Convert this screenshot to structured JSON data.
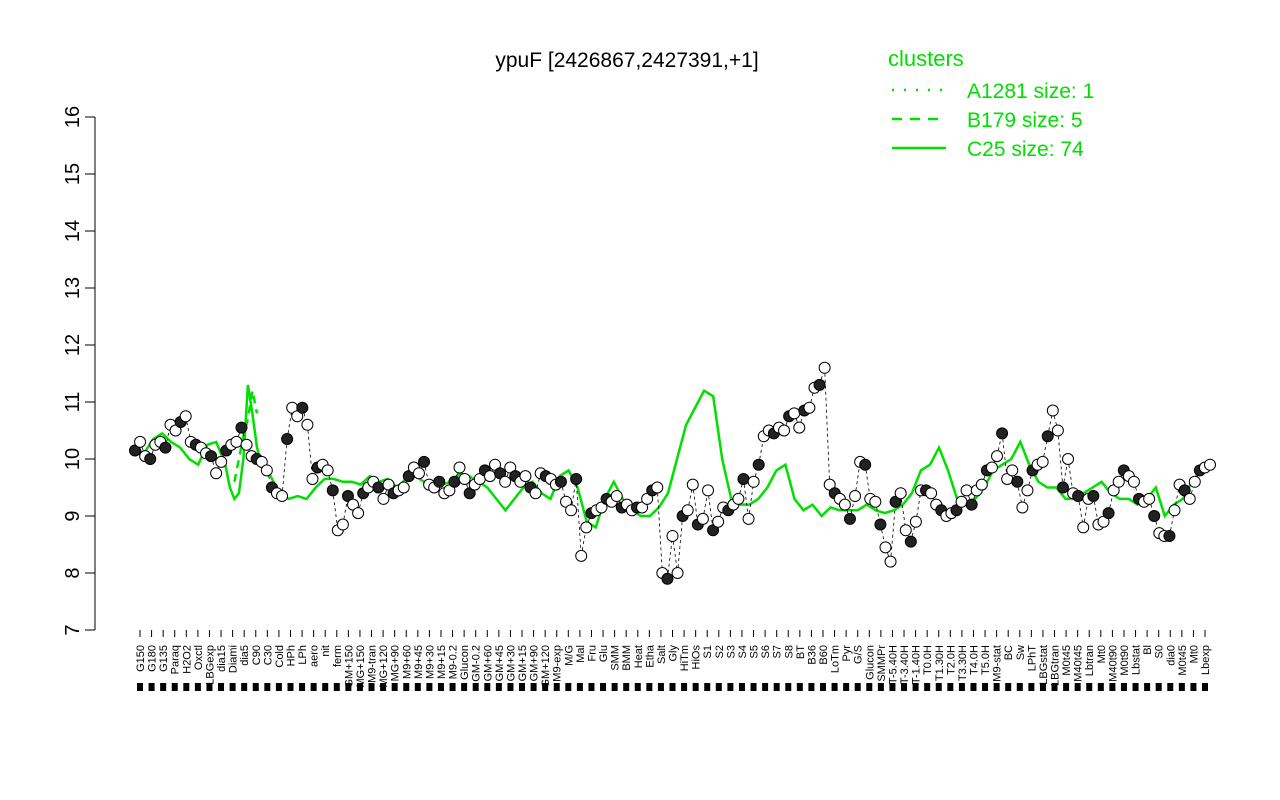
{
  "chart_data": {
    "type": "line",
    "title": "ypuF [2426867,2427391,+1]",
    "xlabel": "",
    "ylabel": "",
    "ylim": [
      7,
      16
    ],
    "yticks": [
      7,
      8,
      9,
      10,
      11,
      12,
      13,
      14,
      15,
      16
    ],
    "legend": {
      "title": "clusters",
      "placement": "top-right",
      "color": "#00e000",
      "entries": [
        {
          "label": "A1281 size: 1",
          "style": "dotted"
        },
        {
          "label": "B179 size: 5",
          "style": "dashed"
        },
        {
          "label": "C25 size: 74",
          "style": "solid"
        }
      ]
    },
    "xtick_labels": [
      "G150",
      "G180",
      "G135",
      "Paraq",
      "H2O2",
      "Oxctl",
      "LBGexp",
      "dia15",
      "Diami",
      "dia5",
      "C90",
      "C30",
      "Cold",
      "HPh",
      "LPh",
      "aero",
      "nit",
      "ferm",
      "GM+150",
      "MG+150",
      "M9-tran",
      "MG+120",
      "MG+90",
      "M9+60",
      "M9+45",
      "M9+30",
      "M9+15",
      "M9-0.2",
      "Glucon",
      "GM-0.2",
      "GM+60",
      "GM+45",
      "GM+30",
      "GM+15",
      "GM+90",
      "GM+120",
      "M9-exp",
      "M/G",
      "Mal",
      "Fru",
      "Glu",
      "SMM",
      "BMM",
      "Heat",
      "Etha",
      "Salt",
      "Gly",
      "HiTm",
      "HiOs",
      "S1",
      "S2",
      "S3",
      "S4",
      "S5",
      "S6",
      "S7",
      "S8",
      "BT",
      "B36",
      "B60",
      "LoTm",
      "Pyr",
      "G/S",
      "Glucon",
      "SMMPr",
      "T-5.40H",
      "T-3.40H",
      "T-1.40H",
      "T0.0H",
      "T1.30H",
      "T2.0H",
      "T3.30H",
      "T4.0H",
      "T5.0H",
      "M9-stat",
      "BC",
      "Sw",
      "LPhT",
      "LBGstat",
      "LBGtran",
      "M0t45",
      "M40t45",
      "Lbtran",
      "Mt0",
      "M40t90",
      "M0t90",
      "Lbstat",
      "Bl",
      "S0",
      "dia0",
      "M0t45",
      "Mt0",
      "Lbexp"
    ],
    "series": [
      {
        "label": "C25 size: 74",
        "style": "solid",
        "color": "#00e000",
        "x": [
          0,
          2,
          4,
          6,
          8,
          10,
          12,
          14,
          16,
          18,
          20,
          21,
          22,
          23,
          24,
          25,
          26,
          27,
          28,
          30,
          32,
          34,
          36,
          38,
          40,
          42,
          44,
          46,
          48,
          50,
          52,
          54,
          56,
          58,
          60,
          62,
          64,
          66,
          68,
          70,
          72,
          74,
          76,
          78,
          80,
          82,
          84,
          86,
          88,
          90,
          92,
          94,
          96,
          98,
          100,
          102,
          104,
          106,
          108,
          110,
          112,
          114,
          116,
          118,
          120,
          122,
          124,
          126,
          128,
          130,
          132,
          134,
          136,
          138,
          140,
          142,
          144,
          146,
          148,
          150,
          152,
          154,
          156,
          158,
          160,
          162,
          164,
          166,
          168,
          170,
          172,
          174,
          176,
          178,
          180,
          182,
          184,
          186,
          188,
          190,
          192,
          194,
          196,
          198,
          200,
          202,
          204,
          206,
          208,
          210,
          212,
          214,
          216,
          218,
          220,
          222,
          224,
          226,
          228,
          230,
          232,
          234,
          236,
          238
        ],
        "y": [
          10.2,
          10.1,
          10.35,
          10.45,
          10.3,
          10.2,
          10.0,
          9.9,
          10.25,
          10.3,
          9.9,
          9.5,
          9.3,
          9.4,
          10.0,
          11.3,
          10.8,
          10.2,
          9.9,
          9.7,
          9.4,
          9.3,
          9.35,
          9.3,
          9.5,
          9.65,
          9.65,
          9.6,
          9.6,
          9.55,
          9.7,
          9.6,
          9.65,
          9.5,
          9.65,
          9.7,
          9.6,
          9.6,
          9.55,
          9.6,
          9.75,
          9.7,
          9.6,
          9.5,
          9.3,
          9.1,
          9.3,
          9.5,
          9.6,
          9.4,
          9.3,
          9.7,
          9.8,
          9.5,
          8.9,
          8.8,
          9.3,
          9.6,
          9.3,
          9.1,
          9.0,
          9.0,
          9.15,
          9.4,
          10.0,
          10.6,
          10.9,
          11.2,
          11.1,
          10.0,
          9.3,
          9.2,
          9.2,
          9.3,
          9.5,
          9.8,
          9.9,
          9.3,
          9.1,
          9.2,
          9.0,
          9.15,
          9.1,
          9.1,
          9.1,
          9.2,
          9.1,
          9.05,
          9.1,
          9.2,
          9.4,
          9.8,
          9.9,
          10.2,
          9.8,
          9.3,
          9.2,
          9.3,
          9.5,
          9.8,
          9.9,
          10.0,
          10.3,
          9.9,
          9.6,
          9.5,
          9.5,
          9.3,
          9.3,
          9.4,
          9.5,
          9.6,
          9.4,
          9.3,
          9.3,
          9.2,
          9.3,
          9.5,
          9.0,
          9.2,
          9.3,
          9.6,
          9.8,
          9.9
        ]
      },
      {
        "label": "B179 size: 5",
        "style": "dashed",
        "color": "#00e000",
        "x": [
          22,
          24,
          25,
          26,
          27
        ],
        "y": [
          9.6,
          10.4,
          10.7,
          11.2,
          10.8
        ]
      }
    ],
    "points": [
      [
        0,
        10.15
      ],
      [
        1,
        10.3
      ],
      [
        2,
        10.05
      ],
      [
        3,
        10.0
      ],
      [
        4,
        10.25
      ],
      [
        5,
        10.3
      ],
      [
        6,
        10.2
      ],
      [
        7,
        10.6
      ],
      [
        8,
        10.5
      ],
      [
        9,
        10.65
      ],
      [
        10,
        10.75
      ],
      [
        11,
        10.3
      ],
      [
        12,
        10.25
      ],
      [
        13,
        10.2
      ],
      [
        14,
        10.1
      ],
      [
        15,
        10.05
      ],
      [
        16,
        9.75
      ],
      [
        17,
        9.95
      ],
      [
        18,
        10.15
      ],
      [
        19,
        10.25
      ],
      [
        20,
        10.3
      ],
      [
        21,
        10.55
      ],
      [
        22,
        10.25
      ],
      [
        23,
        10.05
      ],
      [
        24,
        10.0
      ],
      [
        25,
        9.95
      ],
      [
        26,
        9.8
      ],
      [
        27,
        9.5
      ],
      [
        28,
        9.4
      ],
      [
        29,
        9.35
      ],
      [
        30,
        10.35
      ],
      [
        31,
        10.9
      ],
      [
        32,
        10.75
      ],
      [
        33,
        10.9
      ],
      [
        34,
        10.6
      ],
      [
        35,
        9.65
      ],
      [
        36,
        9.85
      ],
      [
        37,
        9.9
      ],
      [
        38,
        9.8
      ],
      [
        39,
        9.45
      ],
      [
        40,
        8.75
      ],
      [
        41,
        8.85
      ],
      [
        42,
        9.35
      ],
      [
        43,
        9.2
      ],
      [
        44,
        9.05
      ],
      [
        45,
        9.4
      ],
      [
        46,
        9.5
      ],
      [
        47,
        9.6
      ],
      [
        48,
        9.5
      ],
      [
        49,
        9.3
      ],
      [
        50,
        9.55
      ],
      [
        51,
        9.4
      ],
      [
        52,
        9.45
      ],
      [
        53,
        9.5
      ],
      [
        54,
        9.7
      ],
      [
        55,
        9.85
      ],
      [
        56,
        9.75
      ],
      [
        57,
        9.95
      ],
      [
        58,
        9.55
      ],
      [
        59,
        9.5
      ],
      [
        60,
        9.6
      ],
      [
        61,
        9.4
      ],
      [
        62,
        9.45
      ],
      [
        63,
        9.6
      ],
      [
        64,
        9.85
      ],
      [
        65,
        9.65
      ],
      [
        66,
        9.4
      ],
      [
        67,
        9.55
      ],
      [
        68,
        9.65
      ],
      [
        69,
        9.8
      ],
      [
        70,
        9.7
      ],
      [
        71,
        9.9
      ],
      [
        72,
        9.75
      ],
      [
        73,
        9.6
      ],
      [
        74,
        9.85
      ],
      [
        75,
        9.7
      ],
      [
        76,
        9.6
      ],
      [
        77,
        9.7
      ],
      [
        78,
        9.5
      ],
      [
        79,
        9.4
      ],
      [
        80,
        9.75
      ],
      [
        81,
        9.7
      ],
      [
        82,
        9.65
      ],
      [
        83,
        9.55
      ],
      [
        84,
        9.6
      ],
      [
        85,
        9.25
      ],
      [
        86,
        9.1
      ],
      [
        87,
        9.65
      ],
      [
        88,
        8.3
      ],
      [
        89,
        8.8
      ],
      [
        90,
        9.05
      ],
      [
        91,
        9.1
      ],
      [
        92,
        9.15
      ],
      [
        93,
        9.3
      ],
      [
        94,
        9.25
      ],
      [
        95,
        9.35
      ],
      [
        96,
        9.15
      ],
      [
        97,
        9.2
      ],
      [
        98,
        9.1
      ],
      [
        99,
        9.15
      ],
      [
        100,
        9.15
      ],
      [
        101,
        9.3
      ],
      [
        102,
        9.45
      ],
      [
        103,
        9.5
      ],
      [
        104,
        8.0
      ],
      [
        105,
        7.9
      ],
      [
        106,
        8.65
      ],
      [
        107,
        8.0
      ],
      [
        108,
        9.0
      ],
      [
        109,
        9.1
      ],
      [
        110,
        9.55
      ],
      [
        111,
        8.85
      ],
      [
        112,
        8.95
      ],
      [
        113,
        9.45
      ],
      [
        114,
        8.75
      ],
      [
        115,
        8.9
      ],
      [
        116,
        9.15
      ],
      [
        117,
        9.1
      ],
      [
        118,
        9.2
      ],
      [
        119,
        9.3
      ],
      [
        120,
        9.65
      ],
      [
        121,
        8.95
      ],
      [
        122,
        9.6
      ],
      [
        123,
        9.9
      ],
      [
        124,
        10.4
      ],
      [
        125,
        10.5
      ],
      [
        126,
        10.45
      ],
      [
        127,
        10.55
      ],
      [
        128,
        10.5
      ],
      [
        129,
        10.75
      ],
      [
        130,
        10.8
      ],
      [
        131,
        10.55
      ],
      [
        132,
        10.85
      ],
      [
        133,
        10.9
      ],
      [
        134,
        11.25
      ],
      [
        135,
        11.3
      ],
      [
        136,
        11.6
      ],
      [
        137,
        9.55
      ],
      [
        138,
        9.4
      ],
      [
        139,
        9.3
      ],
      [
        140,
        9.2
      ],
      [
        141,
        8.95
      ],
      [
        142,
        9.35
      ],
      [
        143,
        9.95
      ],
      [
        144,
        9.9
      ],
      [
        145,
        9.3
      ],
      [
        146,
        9.25
      ],
      [
        147,
        8.85
      ],
      [
        148,
        8.45
      ],
      [
        149,
        8.2
      ],
      [
        150,
        9.25
      ],
      [
        151,
        9.4
      ],
      [
        152,
        8.75
      ],
      [
        153,
        8.55
      ],
      [
        154,
        8.9
      ],
      [
        155,
        9.45
      ],
      [
        156,
        9.45
      ],
      [
        157,
        9.4
      ],
      [
        158,
        9.2
      ],
      [
        159,
        9.1
      ],
      [
        160,
        9.0
      ],
      [
        161,
        9.05
      ],
      [
        162,
        9.1
      ],
      [
        163,
        9.25
      ],
      [
        164,
        9.45
      ],
      [
        165,
        9.2
      ],
      [
        166,
        9.45
      ],
      [
        167,
        9.55
      ],
      [
        168,
        9.8
      ],
      [
        169,
        9.85
      ],
      [
        170,
        10.05
      ],
      [
        171,
        10.45
      ],
      [
        172,
        9.65
      ],
      [
        173,
        9.8
      ],
      [
        174,
        9.6
      ],
      [
        175,
        9.15
      ],
      [
        176,
        9.45
      ],
      [
        177,
        9.8
      ],
      [
        178,
        9.9
      ],
      [
        179,
        9.95
      ],
      [
        180,
        10.4
      ],
      [
        181,
        10.85
      ],
      [
        182,
        10.5
      ],
      [
        183,
        9.5
      ],
      [
        184,
        10.0
      ],
      [
        185,
        9.4
      ],
      [
        186,
        9.35
      ],
      [
        187,
        8.8
      ],
      [
        188,
        9.3
      ],
      [
        189,
        9.35
      ],
      [
        190,
        8.85
      ],
      [
        191,
        8.9
      ],
      [
        192,
        9.05
      ],
      [
        193,
        9.45
      ],
      [
        194,
        9.6
      ],
      [
        195,
        9.8
      ],
      [
        196,
        9.7
      ],
      [
        197,
        9.6
      ],
      [
        198,
        9.3
      ],
      [
        199,
        9.25
      ],
      [
        200,
        9.3
      ],
      [
        201,
        9.0
      ],
      [
        202,
        8.7
      ],
      [
        203,
        8.65
      ],
      [
        204,
        8.65
      ],
      [
        205,
        9.1
      ],
      [
        206,
        9.55
      ],
      [
        207,
        9.45
      ],
      [
        208,
        9.3
      ],
      [
        209,
        9.6
      ],
      [
        210,
        9.8
      ],
      [
        211,
        9.85
      ],
      [
        212,
        9.9
      ]
    ]
  }
}
